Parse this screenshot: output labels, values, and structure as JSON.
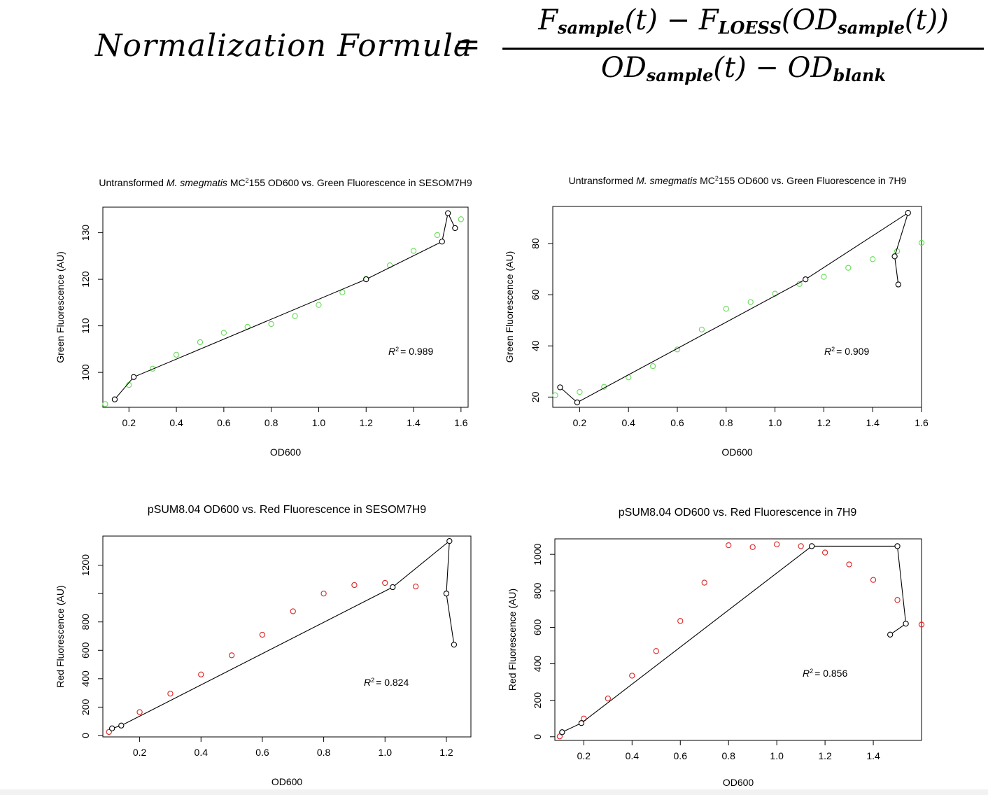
{
  "formula": {
    "lhs": "Normalization Formula",
    "equals": "=",
    "numerator": {
      "f1": "F",
      "f1_sub": "sample",
      "t1": "(t)",
      "minus": " − ",
      "f2": "F",
      "f2_sub": "LOESS",
      "od_open": "(OD",
      "od_sub": "sample",
      "t2": "(t))"
    },
    "denominator": {
      "od1": "OD",
      "od1_sub": "sample",
      "t": "(t)",
      "minus": " − ",
      "od2": "OD",
      "od2_sub": "blank"
    }
  },
  "chart_data": [
    {
      "type": "scatter",
      "title_parts": [
        {
          "text": "Untransformed ",
          "italic": false
        },
        {
          "text": "M. smegmatis",
          "italic": true
        },
        {
          "text": " MC",
          "italic": false
        },
        {
          "text": "2",
          "sup": true
        },
        {
          "text": "155 OD600 vs. Green Fluorescence in SESOM7H9",
          "italic": false
        }
      ],
      "xlabel": "OD600",
      "ylabel": "Green Fluorescence (AU)",
      "xlim": [
        0.09,
        1.63
      ],
      "ylim": [
        92.5,
        135.5
      ],
      "xticks": [
        0.2,
        0.4,
        0.6,
        0.8,
        1.0,
        1.2,
        1.4,
        1.6
      ],
      "xtick_labels": [
        "0.2",
        "0.4",
        "0.6",
        "0.8",
        "1.0",
        "1.2",
        "1.4",
        "1.6"
      ],
      "yticks": [
        100,
        110,
        120,
        130
      ],
      "ytick_labels": [
        "100",
        "110",
        "120",
        "130"
      ],
      "points_color": "#66dd55",
      "points": {
        "x": [
          0.1,
          0.2,
          0.3,
          0.4,
          0.5,
          0.6,
          0.7,
          0.8,
          0.9,
          1.0,
          1.1,
          1.2,
          1.3,
          1.4,
          1.5,
          1.6
        ],
        "y": [
          93.2,
          97.3,
          100.8,
          103.8,
          106.5,
          108.5,
          109.8,
          110.4,
          112.1,
          114.5,
          117.2,
          120.1,
          123.0,
          126.1,
          129.5,
          132.9
        ]
      },
      "fit_line": {
        "x": [
          0.14,
          0.22,
          1.2,
          1.52,
          1.545,
          1.575
        ],
        "y": [
          94.2,
          99.0,
          120.0,
          128.1,
          134.2,
          131.0
        ]
      },
      "annotation": {
        "r2_label": "R",
        "r2_value": "= 0.989"
      }
    },
    {
      "type": "scatter",
      "title_parts": [
        {
          "text": "Untransformed ",
          "italic": false
        },
        {
          "text": "M. smegmatis",
          "italic": true
        },
        {
          "text": " MC",
          "italic": false
        },
        {
          "text": "2",
          "sup": true
        },
        {
          "text": "155 OD600 vs. Green Fluorescence in 7H9",
          "italic": false
        }
      ],
      "xlabel": "OD600",
      "ylabel": "Green Fluorescence (AU)",
      "xlim": [
        0.09,
        1.6
      ],
      "ylim": [
        16.0,
        94.5
      ],
      "xticks": [
        0.2,
        0.4,
        0.6,
        0.8,
        1.0,
        1.2,
        1.4,
        1.6
      ],
      "xtick_labels": [
        "0.2",
        "0.4",
        "0.6",
        "0.8",
        "1.0",
        "1.2",
        "1.4",
        "1.6"
      ],
      "yticks": [
        20,
        40,
        60,
        80
      ],
      "ytick_labels": [
        "20",
        "40",
        "60",
        "80"
      ],
      "points_color": "#66dd55",
      "points": {
        "x": [
          0.1,
          0.2,
          0.3,
          0.4,
          0.5,
          0.6,
          0.7,
          0.8,
          0.9,
          1.0,
          1.1,
          1.2,
          1.3,
          1.4,
          1.5,
          1.6
        ],
        "y": [
          20.7,
          22.0,
          24.0,
          27.7,
          32.1,
          38.6,
          46.4,
          54.5,
          57.1,
          60.4,
          64.2,
          67.0,
          70.5,
          73.9,
          77.0,
          80.3
        ]
      },
      "fit_line": {
        "x": [
          0.12,
          0.19,
          1.125,
          1.545,
          1.49,
          1.505
        ],
        "y": [
          23.8,
          17.9,
          66.0,
          92.0,
          75.0,
          64.0
        ]
      },
      "annotation": {
        "r2_label": "R",
        "r2_value": "= 0.909"
      }
    },
    {
      "type": "scatter",
      "title_parts": [
        {
          "text": "pSUM8.04 OD600 vs. Red Fluorescence in SESOM7H9",
          "italic": false
        }
      ],
      "xlabel": "OD600",
      "ylabel": "Red Fluorescence (AU)",
      "xlim": [
        0.08,
        1.28
      ],
      "ylim": [
        -10,
        1405
      ],
      "xticks": [
        0.2,
        0.4,
        0.6,
        0.8,
        1.0,
        1.2
      ],
      "xtick_labels": [
        "0.2",
        "0.4",
        "0.6",
        "0.8",
        "1.0",
        "1.2"
      ],
      "yticks": [
        0,
        200,
        400,
        600,
        800,
        1000,
        1200
      ],
      "ytick_labels": [
        "0",
        "200",
        "400",
        "600",
        "800",
        "",
        "1200"
      ],
      "points_color": "#dd2222",
      "points": {
        "x": [
          0.1,
          0.2,
          0.3,
          0.4,
          0.5,
          0.6,
          0.7,
          0.8,
          0.9,
          1.0,
          1.1,
          1.2
        ],
        "y": [
          25,
          165,
          295,
          430,
          565,
          710,
          875,
          1000,
          1060,
          1075,
          1050,
          1000
        ]
      },
      "fit_line": {
        "x": [
          0.11,
          0.14,
          1.025,
          1.21,
          1.2,
          1.225
        ],
        "y": [
          50,
          70,
          1045,
          1370,
          1000,
          640
        ]
      },
      "annotation": {
        "r2_label": "R",
        "r2_value": "= 0.824"
      }
    },
    {
      "type": "scatter",
      "title_parts": [
        {
          "text": "pSUM8.04 OD600 vs. Red Fluorescence in 7H9",
          "italic": false
        }
      ],
      "xlabel": "OD600",
      "ylabel": "Red Fluorescence (AU)",
      "xlim": [
        0.08,
        1.6
      ],
      "ylim": [
        -20,
        1085
      ],
      "xticks": [
        0.2,
        0.4,
        0.6,
        0.8,
        1.0,
        1.2,
        1.4
      ],
      "xtick_labels": [
        "0.2",
        "0.4",
        "0.6",
        "0.8",
        "1.0",
        "1.2",
        "1.4"
      ],
      "yticks": [
        0,
        200,
        400,
        600,
        800,
        1000
      ],
      "ytick_labels": [
        "0",
        "200",
        "400",
        "600",
        "800",
        "1000"
      ],
      "points_color": "#dd2222",
      "points": {
        "x": [
          0.1,
          0.2,
          0.3,
          0.4,
          0.5,
          0.6,
          0.7,
          0.8,
          0.9,
          1.0,
          1.1,
          1.2,
          1.3,
          1.4,
          1.5,
          1.6
        ],
        "y": [
          2,
          100,
          210,
          335,
          470,
          635,
          845,
          1050,
          1040,
          1055,
          1045,
          1010,
          945,
          860,
          750,
          615
        ]
      },
      "fit_line": {
        "x": [
          0.11,
          0.19,
          1.145,
          1.5,
          1.535,
          1.47
        ],
        "y": [
          25,
          75,
          1045,
          1045,
          620,
          560
        ]
      },
      "annotation": {
        "r2_label": "R",
        "r2_value": "= 0.856"
      }
    }
  ]
}
